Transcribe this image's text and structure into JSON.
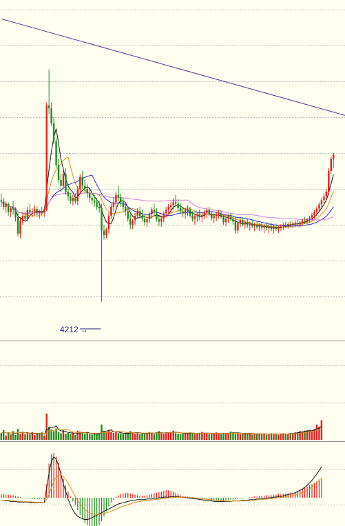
{
  "colors": {
    "background": "#fffff0",
    "grid": "#b9b9b9",
    "up": "#dd2222",
    "down": "#1f8a1f",
    "ma_fast": "#111111",
    "ma_mid": "#e08a1e",
    "ma_slow": "#2a2ad0",
    "ma_long": "#d27ad8",
    "trendline": "#5a2a8c",
    "macd_dif": "#111111",
    "macd_dea": "#e08a1e"
  },
  "annotation": {
    "low_label": "4212"
  },
  "chart_data": [
    {
      "type": "candlestick",
      "panel": "price",
      "ylim": [
        4100,
        5200
      ],
      "grid": true,
      "low_annotation_index": 42,
      "trendline": {
        "from": [
          0,
          5160
        ],
        "to": [
          160,
          4800
        ]
      },
      "ohlc": [
        [
          4552,
          4575,
          4530,
          4548
        ],
        [
          4548,
          4560,
          4520,
          4530
        ],
        [
          4530,
          4548,
          4510,
          4540
        ],
        [
          4540,
          4545,
          4500,
          4512
        ],
        [
          4512,
          4530,
          4495,
          4525
        ],
        [
          4525,
          4550,
          4505,
          4520
        ],
        [
          4520,
          4528,
          4480,
          4495
        ],
        [
          4495,
          4510,
          4430,
          4440
        ],
        [
          4440,
          4495,
          4425,
          4482
        ],
        [
          4482,
          4510,
          4470,
          4500
        ],
        [
          4500,
          4512,
          4485,
          4490
        ],
        [
          4490,
          4530,
          4482,
          4520
        ],
        [
          4520,
          4540,
          4505,
          4512
        ],
        [
          4512,
          4525,
          4495,
          4515
        ],
        [
          4515,
          4535,
          4500,
          4522
        ],
        [
          4522,
          4530,
          4500,
          4508
        ],
        [
          4508,
          4520,
          4490,
          4515
        ],
        [
          4515,
          4530,
          4498,
          4512
        ],
        [
          4512,
          4525,
          4495,
          4520
        ],
        [
          4520,
          4880,
          4515,
          4870
        ],
        [
          4870,
          4990,
          4840,
          4860
        ],
        [
          4860,
          4880,
          4800,
          4810
        ],
        [
          4810,
          4830,
          4740,
          4750
        ],
        [
          4750,
          4760,
          4660,
          4670
        ],
        [
          4670,
          4690,
          4610,
          4620
        ],
        [
          4620,
          4640,
          4580,
          4600
        ],
        [
          4600,
          4650,
          4590,
          4640
        ],
        [
          4640,
          4660,
          4570,
          4580
        ],
        [
          4580,
          4600,
          4550,
          4565
        ],
        [
          4565,
          4575,
          4540,
          4550
        ],
        [
          4550,
          4570,
          4535,
          4560
        ],
        [
          4560,
          4575,
          4540,
          4548
        ],
        [
          4548,
          4600,
          4535,
          4590
        ],
        [
          4590,
          4640,
          4570,
          4630
        ],
        [
          4630,
          4650,
          4590,
          4600
        ],
        [
          4600,
          4620,
          4575,
          4590
        ],
        [
          4590,
          4605,
          4560,
          4575
        ],
        [
          4575,
          4590,
          4545,
          4560
        ],
        [
          4560,
          4575,
          4540,
          4552
        ],
        [
          4552,
          4570,
          4530,
          4545
        ],
        [
          4545,
          4560,
          4520,
          4530
        ],
        [
          4530,
          4548,
          4510,
          4525
        ],
        [
          4525,
          4540,
          4212,
          4450
        ],
        [
          4450,
          4470,
          4420,
          4435
        ],
        [
          4435,
          4460,
          4425,
          4455
        ],
        [
          4455,
          4510,
          4440,
          4500
        ],
        [
          4500,
          4540,
          4490,
          4530
        ],
        [
          4530,
          4560,
          4515,
          4545
        ],
        [
          4545,
          4580,
          4530,
          4570
        ],
        [
          4570,
          4600,
          4550,
          4560
        ],
        [
          4560,
          4575,
          4530,
          4545
        ],
        [
          4545,
          4560,
          4515,
          4530
        ],
        [
          4530,
          4545,
          4500,
          4515
        ],
        [
          4515,
          4530,
          4480,
          4490
        ],
        [
          4490,
          4505,
          4455,
          4470
        ],
        [
          4470,
          4490,
          4455,
          4485
        ],
        [
          4485,
          4510,
          4470,
          4500
        ],
        [
          4500,
          4525,
          4490,
          4515
        ],
        [
          4515,
          4530,
          4495,
          4500
        ],
        [
          4500,
          4520,
          4480,
          4490
        ],
        [
          4490,
          4505,
          4468,
          4478
        ],
        [
          4478,
          4495,
          4462,
          4488
        ],
        [
          4488,
          4512,
          4475,
          4505
        ],
        [
          4505,
          4528,
          4490,
          4520
        ],
        [
          4520,
          4540,
          4500,
          4510
        ],
        [
          4510,
          4525,
          4480,
          4488
        ],
        [
          4488,
          4500,
          4465,
          4480
        ],
        [
          4480,
          4495,
          4462,
          4490
        ],
        [
          4490,
          4515,
          4478,
          4508
        ],
        [
          4508,
          4530,
          4495,
          4520
        ],
        [
          4520,
          4540,
          4505,
          4530
        ],
        [
          4530,
          4548,
          4510,
          4535
        ],
        [
          4535,
          4560,
          4520,
          4545
        ],
        [
          4545,
          4570,
          4530,
          4540
        ],
        [
          4540,
          4555,
          4515,
          4525
        ],
        [
          4525,
          4540,
          4505,
          4515
        ],
        [
          4515,
          4530,
          4495,
          4508
        ],
        [
          4508,
          4525,
          4490,
          4518
        ],
        [
          4518,
          4535,
          4500,
          4522
        ],
        [
          4522,
          4530,
          4495,
          4500
        ],
        [
          4500,
          4515,
          4480,
          4490
        ],
        [
          4490,
          4505,
          4470,
          4498
        ],
        [
          4498,
          4512,
          4480,
          4505
        ],
        [
          4505,
          4520,
          4485,
          4495
        ],
        [
          4495,
          4510,
          4478,
          4502
        ],
        [
          4502,
          4518,
          4488,
          4510
        ],
        [
          4510,
          4528,
          4492,
          4518
        ],
        [
          4518,
          4530,
          4498,
          4505
        ],
        [
          4505,
          4515,
          4485,
          4492
        ],
        [
          4492,
          4505,
          4475,
          4498
        ],
        [
          4498,
          4512,
          4482,
          4505
        ],
        [
          4505,
          4520,
          4490,
          4508
        ],
        [
          4508,
          4518,
          4490,
          4496
        ],
        [
          4496,
          4505,
          4470,
          4478
        ],
        [
          4478,
          4495,
          4465,
          4490
        ],
        [
          4490,
          4505,
          4476,
          4498
        ],
        [
          4498,
          4508,
          4482,
          4488
        ],
        [
          4488,
          4500,
          4470,
          4480
        ],
        [
          4480,
          4495,
          4440,
          4450
        ],
        [
          4450,
          4480,
          4440,
          4475
        ],
        [
          4475,
          4492,
          4462,
          4485
        ],
        [
          4485,
          4495,
          4465,
          4472
        ],
        [
          4472,
          4485,
          4455,
          4478
        ],
        [
          4478,
          4490,
          4460,
          4468
        ],
        [
          4468,
          4480,
          4450,
          4472
        ],
        [
          4472,
          4485,
          4458,
          4465
        ],
        [
          4465,
          4478,
          4448,
          4470
        ],
        [
          4470,
          4482,
          4455,
          4462
        ],
        [
          4462,
          4475,
          4448,
          4468
        ],
        [
          4468,
          4480,
          4452,
          4460
        ],
        [
          4460,
          4472,
          4442,
          4466
        ],
        [
          4466,
          4478,
          4450,
          4458
        ],
        [
          4458,
          4470,
          4440,
          4464
        ],
        [
          4464,
          4476,
          4448,
          4455
        ],
        [
          4455,
          4468,
          4440,
          4462
        ],
        [
          4462,
          4474,
          4448,
          4456
        ],
        [
          4456,
          4468,
          4442,
          4460
        ],
        [
          4460,
          4472,
          4450,
          4465
        ],
        [
          4465,
          4476,
          4452,
          4470
        ],
        [
          4470,
          4480,
          4458,
          4468
        ],
        [
          4468,
          4478,
          4456,
          4472
        ],
        [
          4472,
          4482,
          4460,
          4470
        ],
        [
          4470,
          4480,
          4458,
          4474
        ],
        [
          4474,
          4484,
          4462,
          4476
        ],
        [
          4476,
          4486,
          4464,
          4472
        ],
        [
          4472,
          4482,
          4460,
          4478
        ],
        [
          4478,
          4490,
          4466,
          4484
        ],
        [
          4484,
          4496,
          4472,
          4480
        ],
        [
          4480,
          4492,
          4470,
          4488
        ],
        [
          4488,
          4500,
          4476,
          4494
        ],
        [
          4494,
          4510,
          4482,
          4502
        ],
        [
          4502,
          4520,
          4490,
          4512
        ],
        [
          4512,
          4530,
          4500,
          4524
        ],
        [
          4524,
          4545,
          4512,
          4538
        ],
        [
          4538,
          4560,
          4528,
          4552
        ],
        [
          4552,
          4575,
          4540,
          4565
        ],
        [
          4565,
          4590,
          4555,
          4580
        ],
        [
          4580,
          4660,
          4570,
          4650
        ],
        [
          4650,
          4700,
          4640,
          4690
        ],
        [
          4690,
          4710,
          4660,
          4705
        ]
      ],
      "ma": [
        {
          "name": "ma_fast",
          "period": 5
        },
        {
          "name": "ma_mid",
          "period": 10
        },
        {
          "name": "ma_slow",
          "period": 20
        },
        {
          "name": "ma_long",
          "period": 60
        }
      ]
    },
    {
      "type": "bar",
      "panel": "volume",
      "values": [
        30,
        45,
        20,
        35,
        25,
        40,
        22,
        50,
        28,
        33,
        26,
        30,
        24,
        36,
        22,
        28,
        25,
        34,
        20,
        120,
        60,
        48,
        40,
        52,
        36,
        30,
        44,
        28,
        32,
        26,
        30,
        22,
        42,
        38,
        34,
        28,
        30,
        26,
        24,
        28,
        26,
        30,
        70,
        40,
        34,
        44,
        38,
        32,
        36,
        30,
        28,
        26,
        30,
        34,
        40,
        32,
        28,
        34,
        26,
        30,
        28,
        32,
        36,
        30,
        26,
        34,
        40,
        32,
        28,
        30,
        34,
        36,
        42,
        30,
        28,
        26,
        30,
        32,
        28,
        34,
        30,
        26,
        28,
        32,
        36,
        30,
        28,
        26,
        30,
        28,
        34,
        30,
        26,
        28,
        30,
        32,
        38,
        34,
        28,
        30,
        26,
        28,
        30,
        26,
        28,
        24,
        26,
        28,
        30,
        26,
        28,
        24,
        26,
        30,
        28,
        26,
        24,
        28,
        30,
        26,
        28,
        32,
        30,
        34,
        36,
        40,
        38,
        42,
        44,
        46,
        40,
        50,
        70,
        60,
        90
      ]
    },
    {
      "type": "bar",
      "panel": "macd",
      "ylim": [
        -60,
        80
      ],
      "hist": [
        6,
        6,
        5,
        5,
        4,
        4,
        3,
        2,
        1,
        0,
        -1,
        -1,
        -1,
        -2,
        -2,
        -2,
        -2,
        -2,
        -2,
        22,
        55,
        70,
        72,
        66,
        56,
        42,
        30,
        20,
        10,
        2,
        -6,
        -12,
        -20,
        -28,
        -35,
        -40,
        -44,
        -48,
        -50,
        -52,
        -50,
        -44,
        -38,
        -30,
        -22,
        -14,
        -8,
        -3,
        1,
        4,
        6,
        7,
        8,
        8,
        7,
        6,
        5,
        4,
        3,
        3,
        3,
        4,
        5,
        6,
        7,
        8,
        9,
        10,
        11,
        12,
        12,
        11,
        10,
        8,
        6,
        4,
        3,
        2,
        2,
        1,
        1,
        0,
        0,
        -1,
        -1,
        -2,
        -2,
        -3,
        -3,
        -4,
        -4,
        -5,
        -5,
        -5,
        -4,
        -4,
        -3,
        -3,
        -2,
        -2,
        -1,
        -1,
        0,
        0,
        1,
        1,
        2,
        2,
        3,
        3,
        3,
        4,
        4,
        4,
        5,
        5,
        6,
        6,
        6,
        7,
        7,
        8,
        8,
        9,
        10,
        12,
        14,
        16,
        18,
        20,
        22,
        24,
        26,
        28,
        30
      ],
      "dif": [
        -4,
        -4,
        -5,
        -5,
        -6,
        -6,
        -6,
        -7,
        -7,
        -7,
        -7,
        -7,
        -8,
        -8,
        -8,
        -8,
        -8,
        -8,
        -8,
        15,
        40,
        58,
        66,
        62,
        52,
        38,
        22,
        10,
        -2,
        -12,
        -20,
        -26,
        -30,
        -32,
        -34,
        -35,
        -35,
        -34,
        -32,
        -30,
        -28,
        -26,
        -24,
        -22,
        -20,
        -18,
        -16,
        -14,
        -12,
        -10,
        -9,
        -8,
        -7,
        -6,
        -5,
        -4,
        -4,
        -3,
        -3,
        -3,
        -3,
        -2,
        -2,
        -2,
        -1,
        -1,
        0,
        0,
        1,
        1,
        1,
        2,
        2,
        2,
        2,
        1,
        1,
        0,
        0,
        -1,
        -1,
        -2,
        -2,
        -3,
        -3,
        -4,
        -4,
        -5,
        -5,
        -6,
        -6,
        -6,
        -6,
        -6,
        -6,
        -6,
        -6,
        -5,
        -5,
        -5,
        -5,
        -4,
        -4,
        -4,
        -3,
        -3,
        -3,
        -2,
        -2,
        -2,
        -1,
        -1,
        0,
        0,
        1,
        1,
        2,
        2,
        3,
        4,
        5,
        6,
        7,
        8,
        10,
        12,
        14,
        17,
        20,
        24,
        28,
        33,
        38,
        44,
        50
      ]
    }
  ]
}
